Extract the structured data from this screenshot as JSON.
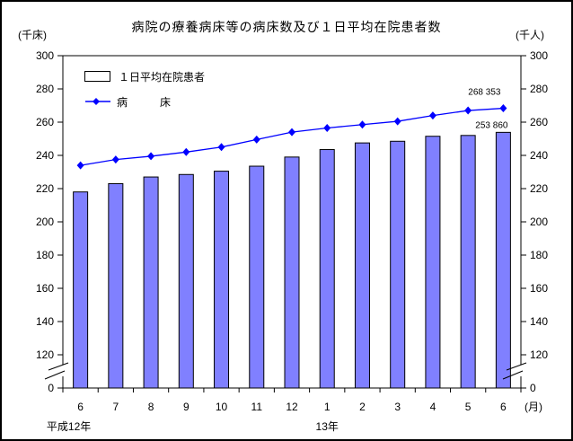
{
  "frame": {
    "title": "病院の療養病床等の病床数及び１日平均在院患者数",
    "unit_left": "(千床)",
    "unit_right": "(千人)"
  },
  "legend": {
    "bar_label": "１日平均在院患者",
    "line_label": "病　　　床"
  },
  "colors": {
    "bar_fill": "#8080FF",
    "bar_border": "#000000",
    "line": "#0000FF",
    "axis": "#000000"
  },
  "chart_data": {
    "type": "bar+line",
    "title": "病院の療養病床等の病床数及び１日平均在院患者数",
    "categories": [
      "6",
      "7",
      "8",
      "9",
      "10",
      "11",
      "12",
      "1",
      "2",
      "3",
      "4",
      "5",
      "6"
    ],
    "x_axis": {
      "unit": "(月)",
      "era_labels": [
        {
          "text": "平成12年",
          "month_index": 0,
          "dx": -13
        },
        {
          "text": "13年",
          "month_index": 7,
          "dx": 0
        }
      ]
    },
    "y_axis": {
      "unit_left": "(千床)",
      "unit_right": "(千人)",
      "ticks": [
        300,
        280,
        260,
        240,
        220,
        200,
        180,
        160,
        140,
        120,
        0
      ],
      "axis_break_between": [
        0,
        120
      ],
      "ylim_main": [
        120,
        300
      ]
    },
    "series": [
      {
        "name": "１日平均在院患者",
        "type": "bar",
        "color": "#8080FF",
        "values": [
          218,
          223,
          227,
          228.5,
          230.5,
          233.5,
          239,
          243.5,
          247.5,
          248.5,
          251.5,
          252,
          253.86
        ]
      },
      {
        "name": "病床",
        "type": "line",
        "color": "#0000FF",
        "marker": "diamond",
        "values": [
          234,
          237.5,
          239.5,
          242,
          245,
          249.5,
          254,
          256.5,
          258.5,
          260.5,
          264,
          267,
          268.353
        ]
      }
    ],
    "annotations": [
      {
        "text": "268 353",
        "series": "line",
        "month_index": 12
      },
      {
        "text": "253 860",
        "series": "bar",
        "month_index": 12
      }
    ]
  }
}
